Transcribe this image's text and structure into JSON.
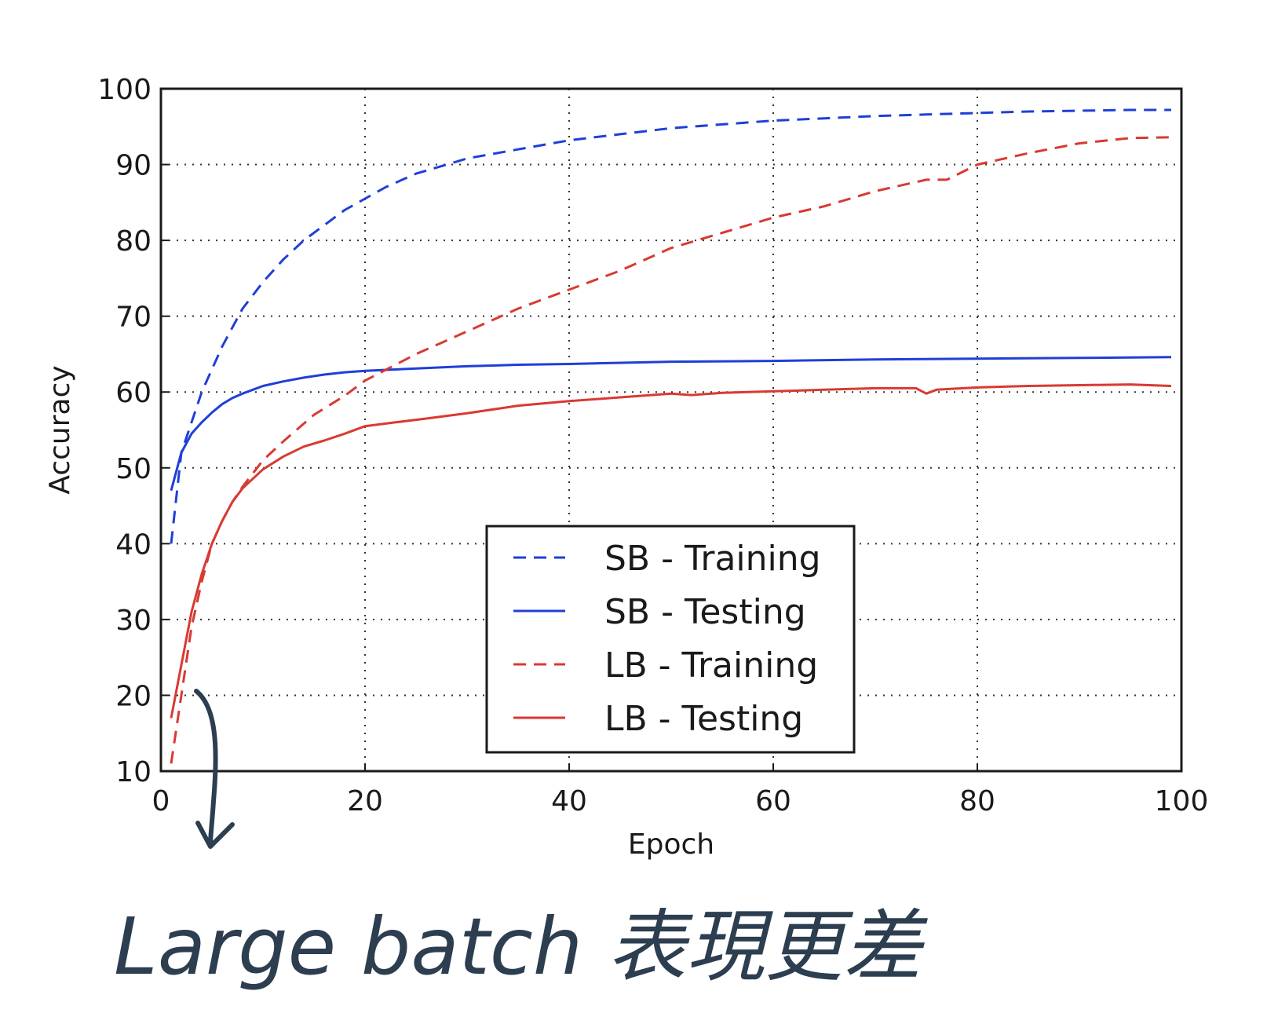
{
  "chart_data": {
    "type": "line",
    "xlabel": "Epoch",
    "ylabel": "Accuracy",
    "xlim": [
      0,
      100
    ],
    "ylim": [
      10,
      100
    ],
    "xticks": [
      0,
      20,
      40,
      60,
      80,
      100
    ],
    "yticks": [
      10,
      20,
      30,
      40,
      50,
      60,
      70,
      80,
      90,
      100
    ],
    "grid": true,
    "legend_position": "lower-center",
    "series": [
      {
        "name": "SB - Training",
        "color": "#1f3fd8",
        "style": "dashed",
        "x": [
          1,
          2,
          3,
          4,
          5,
          6,
          7,
          8,
          10,
          12,
          14,
          16,
          18,
          20,
          22,
          25,
          28,
          30,
          35,
          40,
          45,
          50,
          55,
          60,
          65,
          70,
          75,
          80,
          85,
          90,
          95,
          99
        ],
        "y": [
          40,
          52,
          56,
          60,
          63,
          66,
          68.5,
          71,
          74.5,
          77.5,
          80,
          82,
          84,
          85.5,
          87,
          88.8,
          90,
          90.8,
          92,
          93.2,
          94,
          94.8,
          95.3,
          95.8,
          96.1,
          96.4,
          96.6,
          96.8,
          97,
          97.1,
          97.2,
          97.2
        ]
      },
      {
        "name": "SB - Testing",
        "color": "#1f3fd8",
        "style": "solid",
        "x": [
          1,
          2,
          3,
          4,
          5,
          6,
          7,
          8,
          10,
          12,
          14,
          16,
          18,
          20,
          25,
          30,
          35,
          40,
          50,
          60,
          70,
          80,
          90,
          99
        ],
        "y": [
          47,
          52,
          54.5,
          56,
          57.3,
          58.4,
          59.2,
          59.8,
          60.8,
          61.4,
          61.9,
          62.3,
          62.6,
          62.8,
          63.1,
          63.4,
          63.6,
          63.7,
          64,
          64.1,
          64.3,
          64.4,
          64.5,
          64.6
        ]
      },
      {
        "name": "LB - Training",
        "color": "#d83a32",
        "style": "dashed",
        "x": [
          1,
          2,
          3,
          4,
          5,
          6,
          7,
          8,
          10,
          12,
          15,
          18,
          20,
          25,
          30,
          35,
          40,
          45,
          50,
          55,
          60,
          65,
          70,
          75,
          77,
          80,
          85,
          90,
          95,
          99
        ],
        "y": [
          11,
          20,
          29,
          35,
          40,
          43,
          45.5,
          47.5,
          51,
          53.5,
          57,
          59.5,
          61.5,
          65,
          68,
          71,
          73.5,
          76,
          79,
          81,
          83,
          84.5,
          86.5,
          88,
          88,
          90,
          91.5,
          92.8,
          93.5,
          93.6
        ]
      },
      {
        "name": "LB - Testing",
        "color": "#d83a32",
        "style": "solid",
        "x": [
          1,
          2,
          3,
          4,
          5,
          6,
          7,
          8,
          10,
          12,
          14,
          16,
          18,
          20,
          23,
          26,
          30,
          35,
          40,
          45,
          50,
          52,
          55,
          60,
          65,
          70,
          74,
          75,
          76,
          80,
          85,
          90,
          95,
          99
        ],
        "y": [
          17,
          24,
          31,
          36,
          40,
          43,
          45.5,
          47.3,
          49.8,
          51.5,
          52.8,
          53.6,
          54.5,
          55.5,
          56,
          56.5,
          57.2,
          58.2,
          58.8,
          59.3,
          59.8,
          59.6,
          59.9,
          60.1,
          60.3,
          60.5,
          60.5,
          59.8,
          60.3,
          60.6,
          60.8,
          60.9,
          61,
          60.8
        ]
      }
    ]
  },
  "annotation": {
    "text": "Large batch 表現更差",
    "color": "#2c3e50"
  }
}
